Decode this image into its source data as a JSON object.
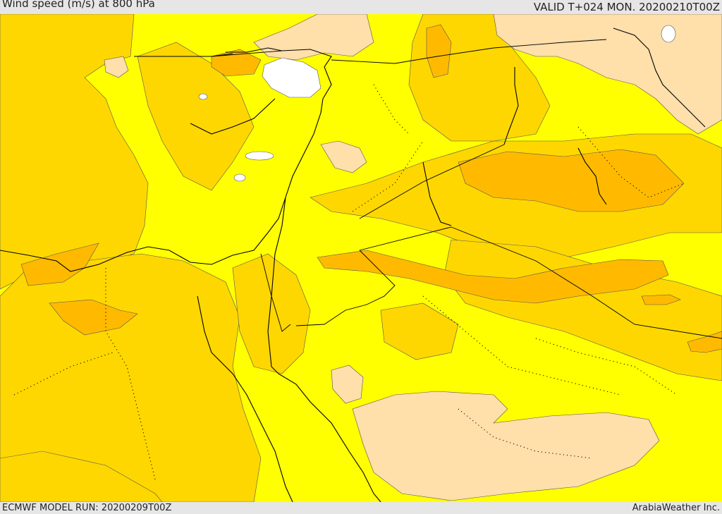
{
  "header": {
    "title": "Wind speed (m/s) at 800 hPa",
    "valid_time": "VALID T+024 MON. 20200210T00Z"
  },
  "footer": {
    "model_run": "ECMWF MODEL RUN: 20200209T00Z",
    "credit": "ArabiaWeather Inc."
  },
  "palette": {
    "band_lowest": "#ffffff",
    "band_low": "#ffff00",
    "band_mid": "#ffd700",
    "band_high": "#ffba00",
    "band_highest": "#ffdfaa",
    "boundary_line": "#000000"
  }
}
